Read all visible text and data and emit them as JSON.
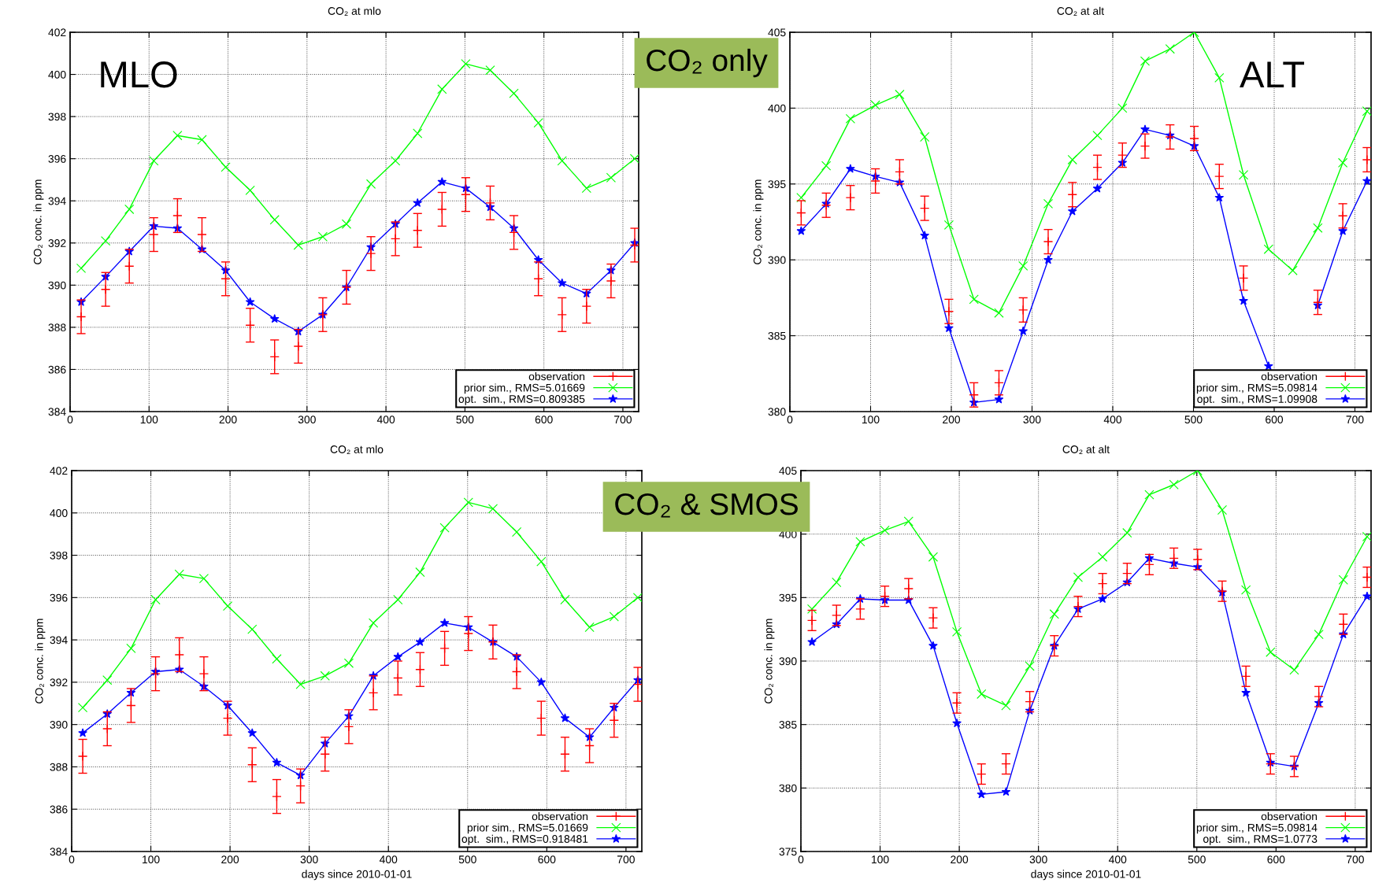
{
  "chart_data": [
    {
      "type": "line",
      "title": "CO₂ at mlo",
      "ylabel": "CO₂ conc. in ppm",
      "xlim": [
        0,
        720
      ],
      "xticks": [
        0,
        100,
        200,
        300,
        400,
        500,
        600,
        700
      ],
      "ylim": [
        384,
        402
      ],
      "yticks": [
        384,
        386,
        388,
        390,
        392,
        394,
        396,
        398,
        400,
        402
      ],
      "grid": true,
      "legend": "bottom right",
      "x": [
        14,
        45,
        75,
        106,
        136,
        167,
        197,
        228,
        259,
        289,
        320,
        350,
        381,
        412,
        440,
        471,
        501,
        532,
        562,
        593,
        623,
        654,
        685,
        715
      ],
      "annotations": [
        "MLO",
        "CO₂ only"
      ],
      "series": [
        {
          "name": "observation",
          "type": "scatter",
          "marker": "cross",
          "color": "#ff0000",
          "values": [
            388.5,
            389.8,
            390.9,
            392.4,
            393.3,
            392.4,
            390.3,
            388.1,
            386.6,
            387.1,
            388.6,
            389.9,
            391.5,
            392.2,
            392.6,
            393.6,
            394.3,
            393.9,
            392.5,
            390.3,
            388.6,
            389.0,
            390.2,
            391.9
          ],
          "errors": [
            0.8,
            0.8,
            0.8,
            0.8,
            0.8,
            0.8,
            0.8,
            0.8,
            0.8,
            0.8,
            0.8,
            0.8,
            0.8,
            0.8,
            0.8,
            0.8,
            0.8,
            0.8,
            0.8,
            0.8,
            0.8,
            0.8,
            0.8,
            0.8
          ]
        },
        {
          "name": "prior sim., RMS=5.01669",
          "marker": "cross",
          "line_style": "solid",
          "color": "#00ff00",
          "values": [
            390.8,
            392.1,
            393.6,
            395.9,
            397.1,
            396.9,
            395.6,
            394.5,
            393.1,
            391.9,
            392.3,
            392.9,
            394.8,
            395.9,
            397.2,
            399.3,
            400.5,
            400.2,
            399.1,
            397.7,
            395.9,
            394.6,
            395.1,
            396.0
          ]
        },
        {
          "name": "opt.  sim., RMS=0.809385",
          "marker": "star",
          "line_style": "solid",
          "color": "#0000ff",
          "values": [
            389.2,
            390.4,
            391.6,
            392.8,
            392.7,
            391.7,
            390.7,
            389.2,
            388.4,
            387.8,
            388.6,
            389.9,
            391.8,
            392.9,
            393.9,
            394.9,
            394.6,
            393.7,
            392.7,
            391.2,
            390.1,
            389.6,
            390.7,
            392.0
          ]
        }
      ]
    },
    {
      "type": "line",
      "title": "CO₂ at alt",
      "ylabel": "CO₂ conc. in ppm",
      "xlim": [
        0,
        720
      ],
      "xticks": [
        0,
        100,
        200,
        300,
        400,
        500,
        600,
        700
      ],
      "ylim": [
        380,
        405
      ],
      "yticks": [
        380,
        385,
        390,
        395,
        400,
        405
      ],
      "grid": true,
      "legend": "bottom right",
      "x": [
        14,
        45,
        75,
        106,
        136,
        167,
        197,
        228,
        259,
        289,
        320,
        350,
        381,
        412,
        440,
        471,
        501,
        532,
        562,
        593,
        623,
        654,
        685,
        715
      ],
      "annotations": [
        "ALT"
      ],
      "series": [
        {
          "name": "observation",
          "type": "scatter",
          "marker": "cross",
          "color": "#ff0000",
          "values": [
            393.1,
            393.6,
            394.1,
            395.2,
            395.8,
            393.4,
            386.6,
            381.1,
            381.9,
            386.7,
            391.2,
            394.3,
            396.1,
            396.9,
            397.5,
            398.1,
            398.0,
            395.5,
            388.8,
            null,
            null,
            387.2,
            392.9,
            396.6
          ],
          "errors": [
            0.8,
            0.8,
            0.8,
            0.8,
            0.8,
            0.8,
            0.8,
            0.8,
            0.8,
            0.8,
            0.8,
            0.8,
            0.8,
            0.8,
            0.8,
            0.8,
            0.8,
            0.8,
            0.8,
            null,
            null,
            0.8,
            0.8,
            0.8
          ]
        },
        {
          "name": "prior sim., RMS=5.09814",
          "marker": "cross",
          "line_style": "solid",
          "color": "#00ff00",
          "values": [
            394.1,
            396.2,
            399.3,
            400.2,
            400.9,
            398.1,
            392.3,
            387.4,
            386.5,
            389.6,
            393.7,
            396.6,
            398.2,
            400.0,
            403.1,
            403.9,
            405.0,
            402.0,
            395.6,
            390.7,
            389.3,
            392.1,
            396.4,
            399.8
          ]
        },
        {
          "name": "opt.  sim., RMS=1.09908",
          "marker": "star",
          "line_style": "solid",
          "color": "#0000ff",
          "values": [
            391.9,
            393.7,
            396.0,
            395.5,
            395.1,
            391.6,
            385.5,
            380.6,
            380.8,
            385.3,
            390.0,
            393.2,
            394.7,
            396.4,
            398.6,
            398.2,
            397.5,
            394.1,
            387.3,
            383.0,
            null,
            387.0,
            391.9,
            395.2
          ]
        }
      ]
    },
    {
      "type": "line",
      "title": "CO₂ at mlo",
      "xlabel": "days since 2010-01-01",
      "ylabel": "CO₂ conc. in ppm",
      "xlim": [
        0,
        720
      ],
      "xticks": [
        0,
        100,
        200,
        300,
        400,
        500,
        600,
        700
      ],
      "ylim": [
        384,
        402
      ],
      "yticks": [
        384,
        386,
        388,
        390,
        392,
        394,
        396,
        398,
        400,
        402
      ],
      "grid": true,
      "legend": "bottom right",
      "x": [
        14,
        45,
        75,
        106,
        136,
        167,
        197,
        228,
        259,
        289,
        320,
        350,
        381,
        412,
        440,
        471,
        501,
        532,
        562,
        593,
        623,
        654,
        685,
        715
      ],
      "annotations": [
        "CO₂ & SMOS"
      ],
      "series": [
        {
          "name": "observation",
          "type": "scatter",
          "marker": "cross",
          "color": "#ff0000",
          "values": [
            388.5,
            389.8,
            390.9,
            392.4,
            393.3,
            392.4,
            390.3,
            388.1,
            386.6,
            387.1,
            388.6,
            389.9,
            391.5,
            392.2,
            392.6,
            393.6,
            394.3,
            393.9,
            392.5,
            390.3,
            388.6,
            389.0,
            390.2,
            391.9
          ],
          "errors": [
            0.8,
            0.8,
            0.8,
            0.8,
            0.8,
            0.8,
            0.8,
            0.8,
            0.8,
            0.8,
            0.8,
            0.8,
            0.8,
            0.8,
            0.8,
            0.8,
            0.8,
            0.8,
            0.8,
            0.8,
            0.8,
            0.8,
            0.8,
            0.8
          ]
        },
        {
          "name": "prior sim., RMS=5.01669",
          "marker": "cross",
          "line_style": "solid",
          "color": "#00ff00",
          "values": [
            390.8,
            392.1,
            393.6,
            395.9,
            397.1,
            396.9,
            395.6,
            394.5,
            393.1,
            391.9,
            392.3,
            392.9,
            394.8,
            395.9,
            397.2,
            399.3,
            400.5,
            400.2,
            399.1,
            397.7,
            395.9,
            394.6,
            395.1,
            396.0
          ]
        },
        {
          "name": "opt.  sim., RMS=0.918481",
          "marker": "star",
          "line_style": "solid",
          "color": "#0000ff",
          "values": [
            389.6,
            390.5,
            391.5,
            392.5,
            392.6,
            391.8,
            390.9,
            389.6,
            388.2,
            387.6,
            389.1,
            390.4,
            392.3,
            393.2,
            393.9,
            394.8,
            394.6,
            393.9,
            393.2,
            392.0,
            390.3,
            389.4,
            390.8,
            392.1
          ]
        }
      ]
    },
    {
      "type": "line",
      "title": "CO₂ at alt",
      "xlabel": "days since 2010-01-01",
      "ylabel": "CO₂ conc. in ppm",
      "xlim": [
        0,
        720
      ],
      "xticks": [
        0,
        100,
        200,
        300,
        400,
        500,
        600,
        700
      ],
      "ylim": [
        375,
        405
      ],
      "yticks": [
        375,
        380,
        385,
        390,
        395,
        400,
        405
      ],
      "grid": true,
      "legend": "bottom right",
      "x": [
        14,
        45,
        75,
        106,
        136,
        167,
        197,
        228,
        259,
        289,
        320,
        350,
        381,
        412,
        440,
        471,
        501,
        532,
        562,
        593,
        623,
        654,
        685,
        715
      ],
      "series": [
        {
          "name": "observation",
          "type": "scatter",
          "marker": "cross",
          "color": "#ff0000",
          "values": [
            393.2,
            393.6,
            394.1,
            395.1,
            395.7,
            393.4,
            386.7,
            381.1,
            381.9,
            386.8,
            391.2,
            394.3,
            396.1,
            396.9,
            397.6,
            398.1,
            398.0,
            395.5,
            388.8,
            381.9,
            381.7,
            387.2,
            392.9,
            396.6
          ],
          "errors": [
            0.8,
            0.8,
            0.8,
            0.8,
            0.8,
            0.8,
            0.8,
            0.8,
            0.8,
            0.8,
            0.8,
            0.8,
            0.8,
            0.8,
            0.8,
            0.8,
            0.8,
            0.8,
            0.8,
            0.8,
            0.8,
            0.8,
            0.8,
            0.8
          ]
        },
        {
          "name": "prior sim., RMS=5.09814",
          "marker": "cross",
          "line_style": "solid",
          "color": "#00ff00",
          "values": [
            394.1,
            396.2,
            399.4,
            400.3,
            401.0,
            398.2,
            392.3,
            387.4,
            386.5,
            389.6,
            393.7,
            396.6,
            398.2,
            400.1,
            403.1,
            403.9,
            405.0,
            401.9,
            395.6,
            390.7,
            389.3,
            392.1,
            396.4,
            399.8
          ]
        },
        {
          "name": "opt.  sim., RMS=1.0773",
          "marker": "star",
          "line_style": "solid",
          "color": "#0000ff",
          "values": [
            391.5,
            392.9,
            394.9,
            394.8,
            394.8,
            391.2,
            385.1,
            379.5,
            379.7,
            386.1,
            391.2,
            394.1,
            394.9,
            396.2,
            398.1,
            397.7,
            397.4,
            395.4,
            387.5,
            382.0,
            381.7,
            386.7,
            392.1,
            395.1
          ]
        }
      ]
    }
  ]
}
